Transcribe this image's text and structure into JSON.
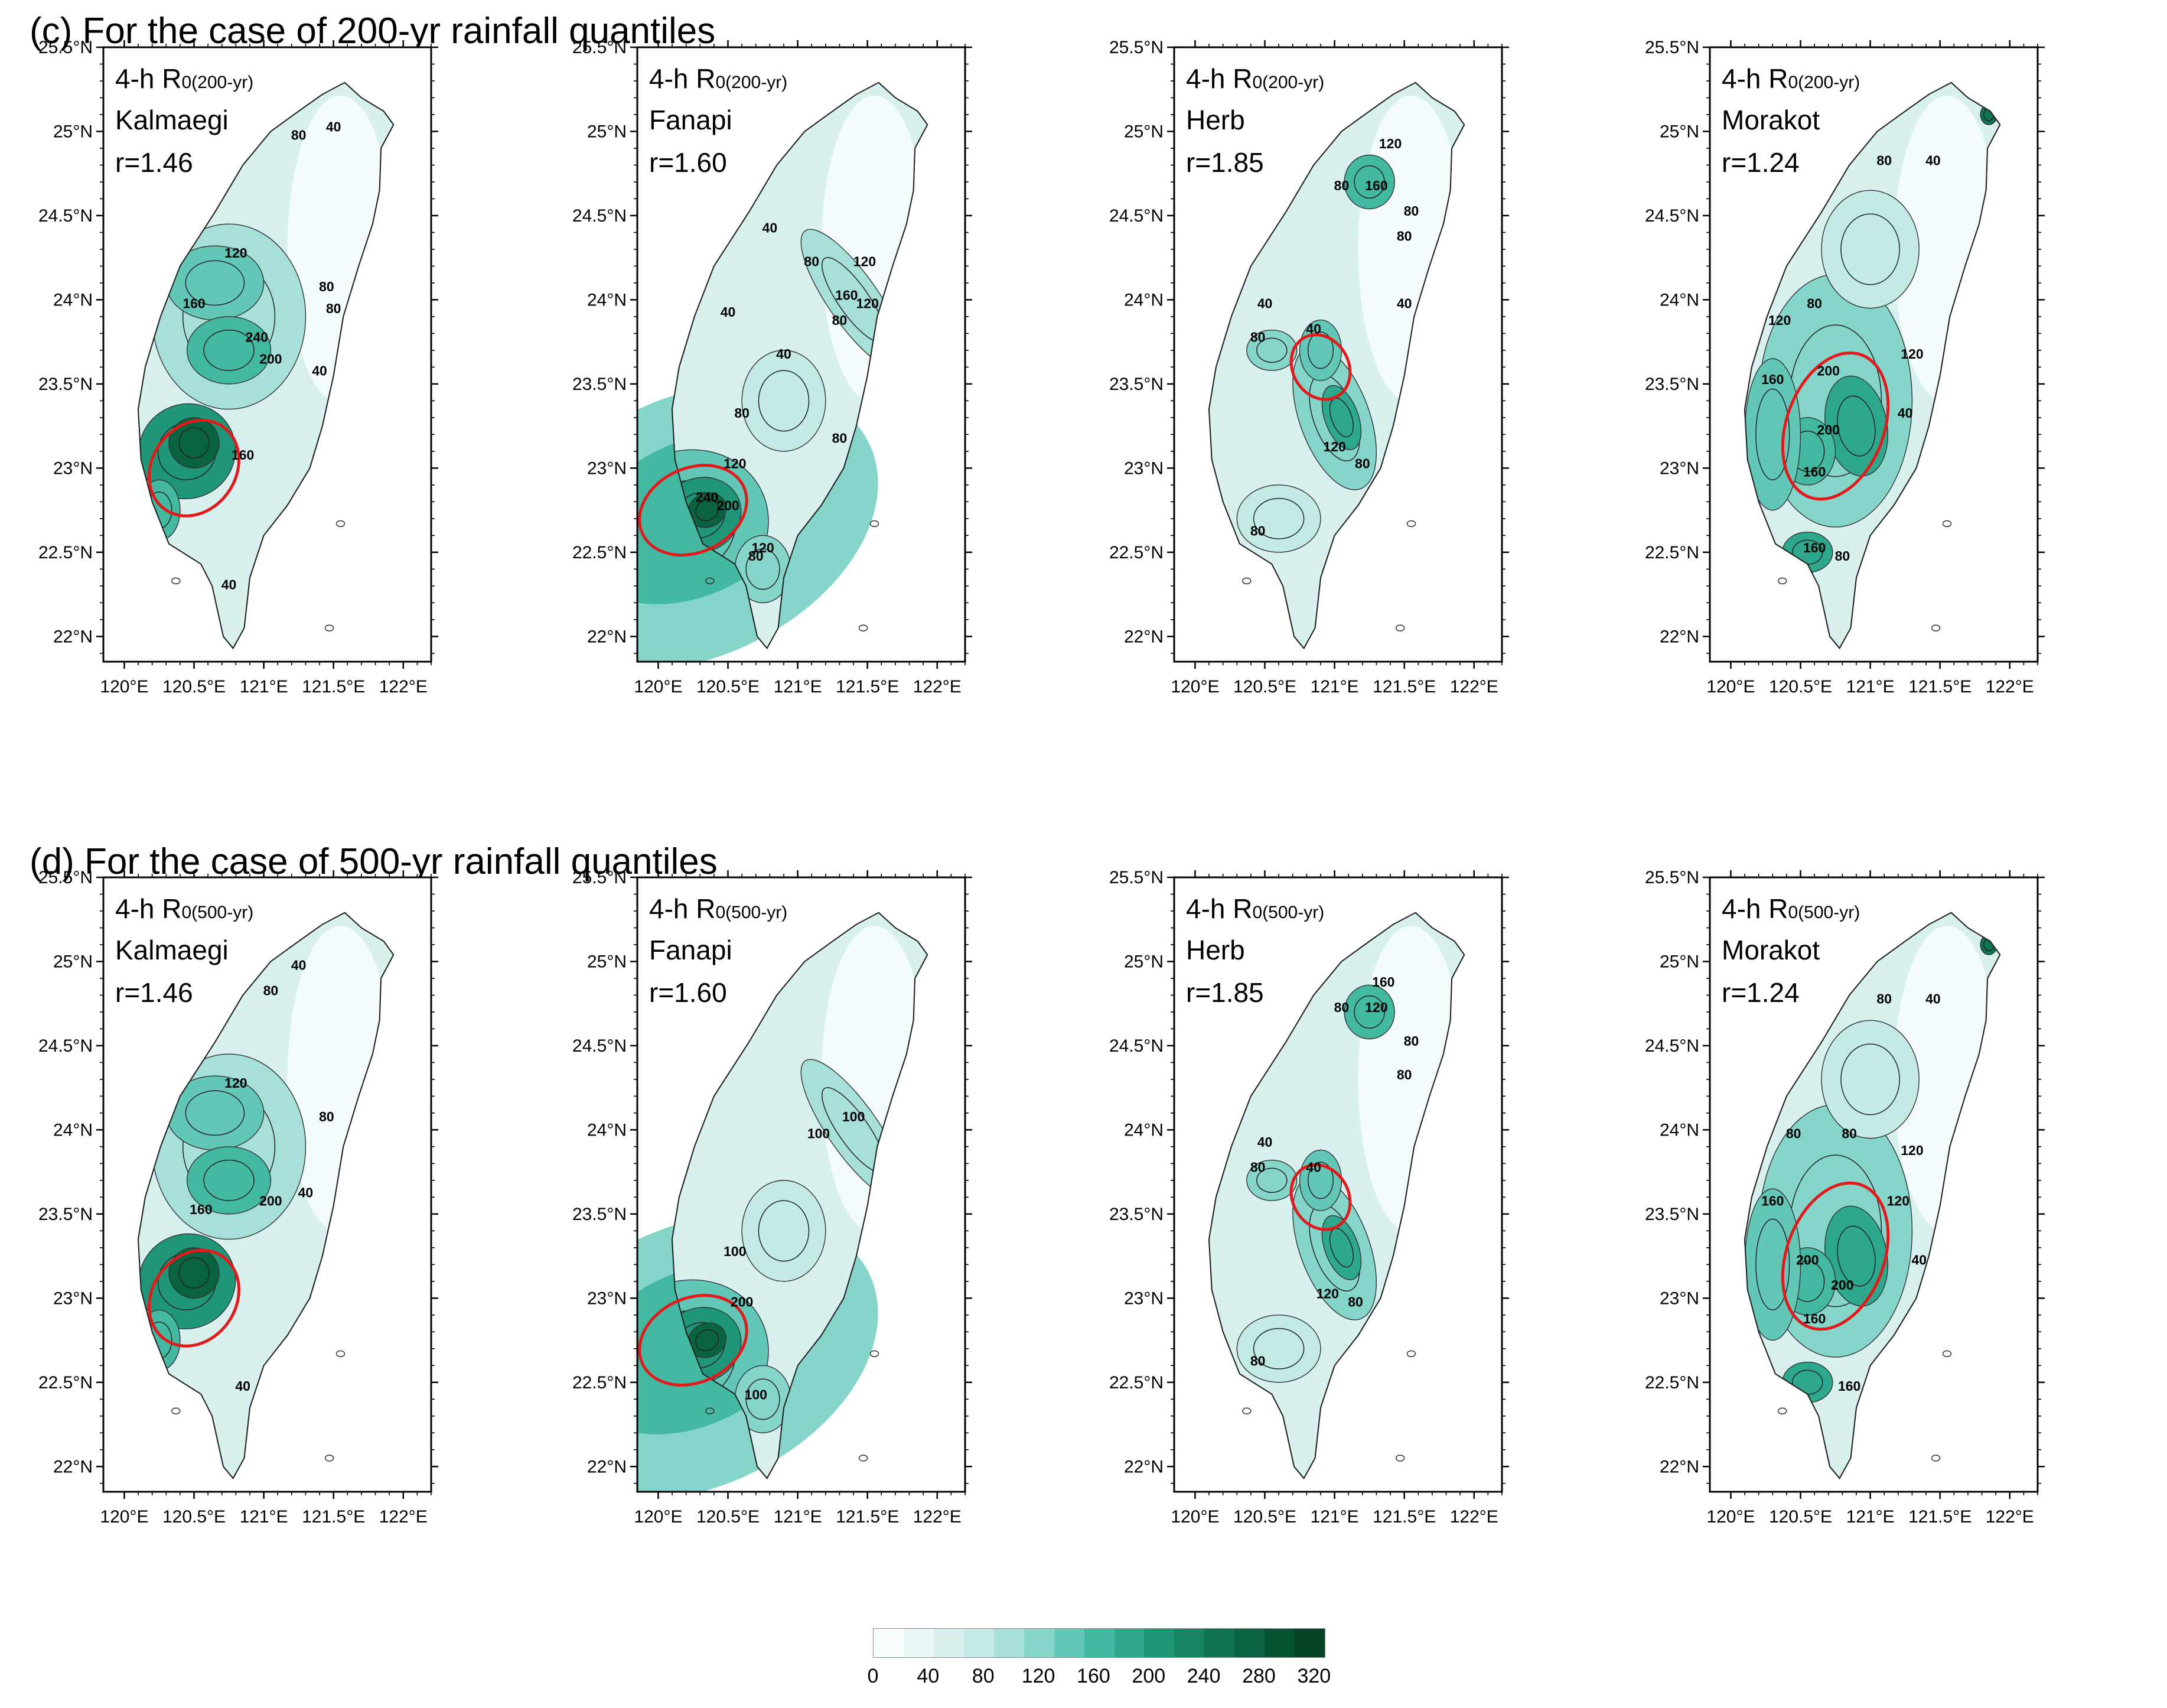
{
  "sections": [
    {
      "title": "(c) For the case of 200-yr rainfall quantiles",
      "subscript": "0(200-yr)",
      "panels": [
        {
          "duration": "4-h",
          "variable": "R",
          "typhoon": "Kalmaegi",
          "ratio": "r=1.46"
        },
        {
          "duration": "4-h",
          "variable": "R",
          "typhoon": "Fanapi",
          "ratio": "r=1.60"
        },
        {
          "duration": "4-h",
          "variable": "R",
          "typhoon": "Herb",
          "ratio": "r=1.85"
        },
        {
          "duration": "4-h",
          "variable": "R",
          "typhoon": "Morakot",
          "ratio": "r=1.24"
        }
      ]
    },
    {
      "title": "(d) For the case of 500-yr rainfall quantiles",
      "subscript": "0(500-yr)",
      "panels": [
        {
          "duration": "4-h",
          "variable": "R",
          "typhoon": "Kalmaegi",
          "ratio": "r=1.46"
        },
        {
          "duration": "4-h",
          "variable": "R",
          "typhoon": "Fanapi",
          "ratio": "r=1.60"
        },
        {
          "duration": "4-h",
          "variable": "R",
          "typhoon": "Herb",
          "ratio": "r=1.85"
        },
        {
          "duration": "4-h",
          "variable": "R",
          "typhoon": "Morakot",
          "ratio": "r=1.24"
        }
      ]
    }
  ],
  "axes": {
    "lat_labels": [
      "25.5°N",
      "25°N",
      "24.5°N",
      "24°N",
      "23.5°N",
      "23°N",
      "22.5°N",
      "22°N"
    ],
    "lat_values": [
      25.5,
      25.0,
      24.5,
      24.0,
      23.5,
      23.0,
      22.5,
      22.0
    ],
    "lon_labels": [
      "120°E",
      "120.5°E",
      "121°E",
      "121.5°E",
      "122°E"
    ],
    "lon_values": [
      120.0,
      120.5,
      121.0,
      121.5,
      122.0
    ],
    "lat_range": [
      21.85,
      25.5
    ],
    "lon_range": [
      119.85,
      122.2
    ]
  },
  "contour_labels": {
    "c": [
      [
        "80",
        "40",
        "120",
        "80",
        "160",
        "240",
        "200",
        "80",
        "40",
        "160",
        "40"
      ],
      [
        "40",
        "80",
        "120",
        "160",
        "80",
        "120",
        "40",
        "40",
        "80",
        "120",
        "240",
        "200",
        "80",
        "80",
        "120"
      ],
      [
        "80",
        "160",
        "120",
        "80",
        "80",
        "40",
        "40",
        "40",
        "80",
        "120",
        "80",
        "80"
      ],
      [
        "80",
        "40",
        "80",
        "120",
        "160",
        "200",
        "200",
        "120",
        "40",
        "160",
        "160",
        "80"
      ]
    ],
    "d": [
      [
        "80",
        "40",
        "120",
        "80",
        "40",
        "160",
        "200",
        "40"
      ],
      [
        "100",
        "100",
        "100",
        "200",
        "100"
      ],
      [
        "80",
        "120",
        "160",
        "80",
        "80",
        "40",
        "40",
        "80",
        "120",
        "80",
        "80"
      ],
      [
        "80",
        "40",
        "80",
        "80",
        "120",
        "160",
        "200",
        "200",
        "120",
        "40",
        "160",
        "160"
      ]
    ]
  },
  "colorbar": {
    "labels": [
      "0",
      "40",
      "80",
      "120",
      "160",
      "200",
      "240",
      "280",
      "320"
    ],
    "colors": [
      "#f7fcfd",
      "#e9f6f6",
      "#d8f0ee",
      "#c3eae5",
      "#a7e0d8",
      "#86d5ca",
      "#63c7b7",
      "#44b9a2",
      "#2da88d",
      "#1f9677",
      "#178563",
      "#0f7451",
      "#0a6340",
      "#065332",
      "#034425"
    ]
  }
}
